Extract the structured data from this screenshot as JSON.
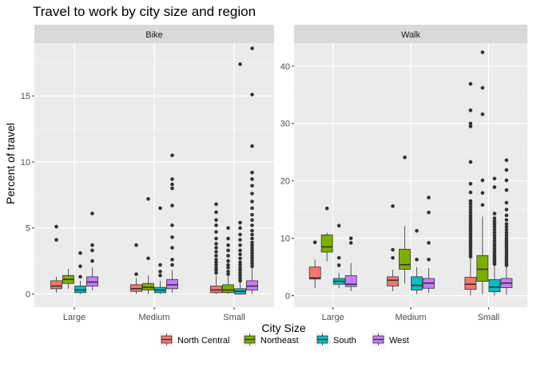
{
  "chart_data": {
    "type": "boxplot",
    "title": "Travel to work by city size and region",
    "xlabel": "City Size",
    "ylabel": "Percent of travel",
    "categories": [
      "Large",
      "Medium",
      "Small"
    ],
    "legend_position": "bottom",
    "background": "#EBEBEB",
    "grid": true,
    "series": [
      {
        "name": "North Central",
        "color": "#F8766D"
      },
      {
        "name": "Northeast",
        "color": "#7CAE00"
      },
      {
        "name": "South",
        "color": "#00BFC4"
      },
      {
        "name": "West",
        "color": "#C77CFF"
      }
    ],
    "panels": [
      {
        "strip": "Bike",
        "ylim": [
          -1,
          19
        ],
        "yticks": [
          0,
          5,
          10,
          15
        ],
        "groups": [
          {
            "category": "Large",
            "series": "North Central",
            "min": 0.1,
            "q1": 0.4,
            "median": 0.6,
            "q3": 1.0,
            "max": 1.3,
            "outliers": [
              4.1,
              5.1
            ]
          },
          {
            "category": "Large",
            "series": "Northeast",
            "min": 0.4,
            "q1": 0.8,
            "median": 1.1,
            "q3": 1.4,
            "max": 1.9,
            "outliers": []
          },
          {
            "category": "Large",
            "series": "South",
            "min": 0.0,
            "q1": 0.1,
            "median": 0.3,
            "q3": 0.6,
            "max": 1.0,
            "outliers": [
              1.3,
              2.1,
              3.1
            ]
          },
          {
            "category": "Large",
            "series": "West",
            "min": 0.3,
            "q1": 0.6,
            "median": 0.9,
            "q3": 1.3,
            "max": 2.0,
            "outliers": [
              2.5,
              3.3,
              3.7,
              6.1
            ]
          },
          {
            "category": "Medium",
            "series": "North Central",
            "min": 0.0,
            "q1": 0.2,
            "median": 0.4,
            "q3": 0.7,
            "max": 1.2,
            "outliers": [
              1.5,
              3.7
            ]
          },
          {
            "category": "Medium",
            "series": "Northeast",
            "min": 0.0,
            "q1": 0.3,
            "median": 0.5,
            "q3": 0.8,
            "max": 1.4,
            "outliers": [
              2.7,
              7.2
            ]
          },
          {
            "category": "Medium",
            "series": "South",
            "min": 0.0,
            "q1": 0.1,
            "median": 0.3,
            "q3": 0.5,
            "max": 1.0,
            "outliers": [
              1.4,
              1.7,
              2.2,
              6.5
            ]
          },
          {
            "category": "Medium",
            "series": "West",
            "min": 0.1,
            "q1": 0.4,
            "median": 0.7,
            "q3": 1.1,
            "max": 1.8,
            "outliers": [
              2.2,
              2.6,
              3.5,
              4.3,
              5.2,
              6.7,
              8.0,
              8.3,
              8.7,
              10.5
            ]
          },
          {
            "category": "Small",
            "series": "North Central",
            "min": 0.0,
            "q1": 0.1,
            "median": 0.3,
            "q3": 0.6,
            "max": 1.4,
            "outliers": [
              1.6,
              1.8,
              2.0,
              2.2,
              2.4,
              2.6,
              2.9,
              3.2,
              3.5,
              3.8,
              4.2,
              4.7,
              5.2,
              5.6,
              6.2,
              6.8
            ]
          },
          {
            "category": "Small",
            "series": "Northeast",
            "min": 0.0,
            "q1": 0.1,
            "median": 0.3,
            "q3": 0.7,
            "max": 1.4,
            "outliers": [
              1.5,
              1.7,
              2.0,
              2.2,
              2.5,
              2.9,
              3.3,
              3.7,
              4.2,
              5.0
            ]
          },
          {
            "category": "Small",
            "series": "South",
            "min": 0.0,
            "q1": 0.0,
            "median": 0.2,
            "q3": 0.4,
            "max": 0.9,
            "outliers": [
              1.0,
              1.2,
              1.4,
              1.6,
              1.8,
              2.0,
              2.2,
              2.4,
              2.7,
              3.0,
              3.3,
              3.7,
              4.1,
              4.5,
              5.0,
              5.4,
              17.4
            ]
          },
          {
            "category": "Small",
            "series": "West",
            "min": 0.0,
            "q1": 0.3,
            "median": 0.6,
            "q3": 1.0,
            "max": 2.0,
            "outliers": [
              2.1,
              2.3,
              2.5,
              2.7,
              2.9,
              3.1,
              3.3,
              3.5,
              3.7,
              3.9,
              4.2,
              4.5,
              4.8,
              5.2,
              5.6,
              6.0,
              6.5,
              7.0,
              7.6,
              8.2,
              8.7,
              9.2,
              11.2,
              15.1,
              18.6
            ]
          }
        ]
      },
      {
        "strip": "Walk",
        "ylim": [
          -2,
          44
        ],
        "yticks": [
          0,
          10,
          20,
          30,
          40
        ],
        "groups": [
          {
            "category": "Large",
            "series": "North Central",
            "min": 1.3,
            "q1": 2.9,
            "median": 3.1,
            "q3": 5.0,
            "max": 6.3,
            "outliers": [
              9.3
            ]
          },
          {
            "category": "Large",
            "series": "Northeast",
            "min": 6.0,
            "q1": 7.6,
            "median": 8.5,
            "q3": 10.6,
            "max": 11.0,
            "outliers": [
              15.2
            ]
          },
          {
            "category": "Large",
            "series": "South",
            "min": 1.3,
            "q1": 2.0,
            "median": 2.5,
            "q3": 3.0,
            "max": 4.0,
            "outliers": [
              5.3,
              6.6,
              12.2
            ]
          },
          {
            "category": "Large",
            "series": "West",
            "min": 0.8,
            "q1": 1.6,
            "median": 2.0,
            "q3": 3.5,
            "max": 5.7,
            "outliers": [
              9.2,
              10.0
            ]
          },
          {
            "category": "Medium",
            "series": "North Central",
            "min": 0.8,
            "q1": 1.7,
            "median": 2.7,
            "q3": 3.3,
            "max": 4.5,
            "outliers": [
              6.6,
              8.0,
              15.6
            ]
          },
          {
            "category": "Medium",
            "series": "Northeast",
            "min": 2.1,
            "q1": 4.6,
            "median": 5.4,
            "q3": 8.1,
            "max": 12.1,
            "outliers": [
              24.1
            ]
          },
          {
            "category": "Medium",
            "series": "South",
            "min": 0.3,
            "q1": 1.0,
            "median": 1.8,
            "q3": 3.3,
            "max": 5.0,
            "outliers": [
              6.3,
              11.3
            ]
          },
          {
            "category": "Medium",
            "series": "West",
            "min": 0.5,
            "q1": 1.3,
            "median": 2.2,
            "q3": 3.0,
            "max": 4.8,
            "outliers": [
              6.3,
              9.2,
              14.5,
              17.1
            ]
          },
          {
            "category": "Small",
            "series": "North Central",
            "min": 0.0,
            "q1": 1.1,
            "median": 2.0,
            "q3": 3.2,
            "max": 6.5,
            "outliers": [
              6.8,
              7.2,
              7.6,
              8.0,
              8.4,
              8.8,
              9.2,
              9.6,
              10.0,
              10.4,
              10.8,
              11.2,
              11.6,
              12.0,
              12.4,
              12.8,
              13.2,
              13.6,
              14.0,
              14.5,
              15.0,
              15.5,
              16.0,
              16.5,
              18.0,
              19.5,
              23.3,
              29.5,
              30.0,
              32.3,
              36.9
            ]
          },
          {
            "category": "Small",
            "series": "Northeast",
            "min": 0.3,
            "q1": 2.5,
            "median": 4.6,
            "q3": 7.0,
            "max": 13.8,
            "outliers": [
              15.8,
              17.9,
              20.1,
              31.6,
              36.2,
              42.4
            ]
          },
          {
            "category": "Small",
            "series": "South",
            "min": 0.0,
            "q1": 0.7,
            "median": 1.5,
            "q3": 2.8,
            "max": 5.2,
            "outliers": [
              5.5,
              5.8,
              6.1,
              6.4,
              6.7,
              7.0,
              7.4,
              7.8,
              8.2,
              8.6,
              9.0,
              9.5,
              10.0,
              10.5,
              11.0,
              11.5,
              12.0,
              12.5,
              13.0,
              13.5,
              14.3,
              18.9,
              20.4
            ]
          },
          {
            "category": "Small",
            "series": "West",
            "min": 0.2,
            "q1": 1.4,
            "median": 2.2,
            "q3": 3.0,
            "max": 5.0,
            "outliers": [
              5.3,
              5.6,
              6.0,
              6.4,
              6.8,
              7.2,
              7.6,
              8.0,
              8.4,
              8.8,
              9.2,
              9.6,
              10.0,
              10.5,
              11.0,
              11.5,
              12.0,
              12.5,
              13.2,
              14.0,
              15.0,
              16.2,
              18.4,
              20.1,
              21.9,
              23.6
            ]
          }
        ]
      }
    ]
  }
}
